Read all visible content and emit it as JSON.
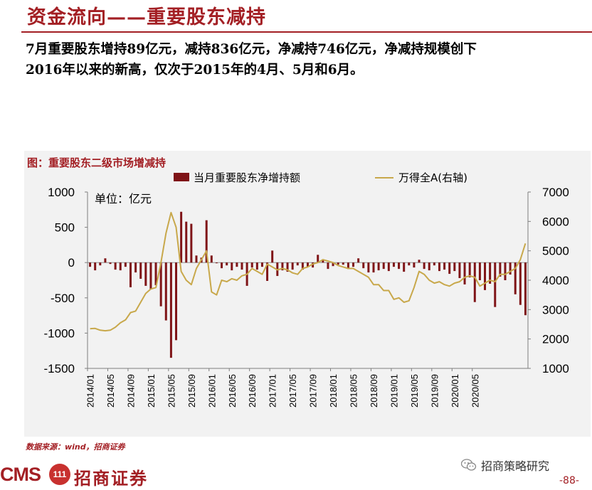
{
  "header": {
    "title": "资金流向——重要股东减持"
  },
  "summary": {
    "line1": "7月重要股东增持89亿元，减持836亿元，净减持746亿元，净减持规模创下",
    "line2": "2016年以来的新高，仅次于2015年的4月、5月和6月。"
  },
  "figure": {
    "title": "图：重要股东二级市场增减持"
  },
  "chart_data": {
    "type": "bar+line",
    "unit_note": "单位：亿元",
    "legend": {
      "bar": "当月重要股东净增持额",
      "line": "万得全A(右轴)",
      "placement": "top"
    },
    "colors": {
      "bar": "#7f1417",
      "line": "#c8a84b",
      "axis": "#7f7f7f"
    },
    "x_start": "2014/01",
    "x_tick_labels": [
      "2014/01",
      "2014/05",
      "2014/09",
      "2015/01",
      "2015/05",
      "2015/09",
      "2016/01",
      "2016/05",
      "2016/09",
      "2017/01",
      "2017/05",
      "2017/09",
      "2018/01",
      "2018/05",
      "2018/09",
      "2019/01",
      "2019/05",
      "2019/09",
      "2020/01",
      "2020/05"
    ],
    "left_axis": {
      "ylim": [
        -1500,
        1000
      ],
      "ticks": [
        1000,
        500,
        0,
        -500,
        -1000,
        -1500
      ]
    },
    "right_axis": {
      "ylim": [
        1000,
        7000
      ],
      "ticks": [
        7000,
        6000,
        5000,
        4000,
        3000,
        2000,
        1000
      ]
    },
    "series": [
      {
        "name": "当月重要股东净增持额",
        "axis": "left",
        "values": [
          -60,
          -110,
          -40,
          60,
          -20,
          -100,
          -110,
          -60,
          -350,
          -140,
          -230,
          -330,
          -380,
          -320,
          -620,
          -820,
          -1350,
          -1100,
          720,
          580,
          550,
          100,
          70,
          600,
          100,
          -10,
          -80,
          -40,
          -110,
          -60,
          -100,
          -330,
          -70,
          -100,
          -60,
          -260,
          170,
          -190,
          -110,
          -130,
          -100,
          -40,
          -100,
          -60,
          -70,
          110,
          40,
          -90,
          -50,
          -30,
          -30,
          -90,
          -60,
          60,
          -80,
          -140,
          -140,
          -110,
          -90,
          -120,
          -60,
          -90,
          -130,
          -40,
          -70,
          40,
          -90,
          -110,
          -40,
          -120,
          -100,
          -160,
          -120,
          -220,
          -310,
          -210,
          -560,
          -250,
          -390,
          -300,
          -630,
          -200,
          -250,
          -170,
          -450,
          -600,
          -746
        ]
      },
      {
        "name": "万得全A(右轴)",
        "axis": "right",
        "values": [
          2350,
          2360,
          2300,
          2280,
          2300,
          2400,
          2550,
          2650,
          2900,
          2950,
          3250,
          3550,
          3700,
          3750,
          4600,
          5600,
          6300,
          5800,
          4300,
          4000,
          3850,
          4400,
          4700,
          5000,
          3600,
          3500,
          4000,
          3950,
          4050,
          4000,
          4150,
          4200,
          4400,
          4300,
          4200,
          4550,
          4450,
          4350,
          4400,
          4350,
          4250,
          4200,
          4400,
          4450,
          4550,
          4600,
          4700,
          4650,
          4600,
          4500,
          4450,
          4400,
          4400,
          4300,
          4200,
          4100,
          3850,
          3850,
          3650,
          3650,
          3350,
          3400,
          3250,
          3300,
          3750,
          4300,
          4200,
          4000,
          3900,
          3950,
          3850,
          3800,
          3900,
          3950,
          4100,
          4150,
          4100,
          3800,
          3900,
          4000,
          3950,
          4200,
          4200,
          4300,
          4400,
          4700,
          5250
        ]
      }
    ]
  },
  "footer": {
    "source": "数据来源：wind，招商证券",
    "logo_cms": "CMS",
    "logo_badge": "111",
    "logo_name": "招商证券",
    "wechat_name": "招商策略研究",
    "page_number": "-88-"
  }
}
